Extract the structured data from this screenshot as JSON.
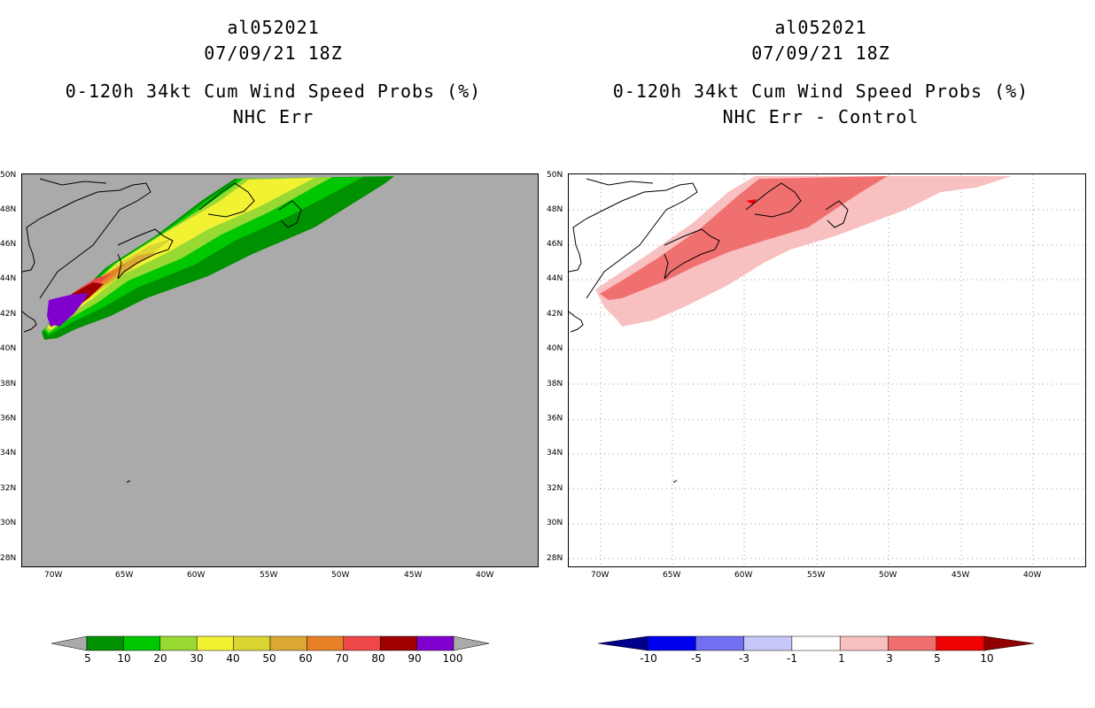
{
  "left": {
    "title1": "al052021",
    "title2": "07/09/21 18Z",
    "title3": "0-120h 34kt Cum Wind Speed Probs (%)",
    "title4": "NHC Err",
    "lat_labels": [
      "50N",
      "48N",
      "46N",
      "44N",
      "42N",
      "40N",
      "38N",
      "36N",
      "34N",
      "32N",
      "30N",
      "28N"
    ],
    "lon_labels": [
      "70W",
      "65W",
      "60W",
      "55W",
      "50W",
      "45W",
      "40W"
    ],
    "colorbar": {
      "labels": [
        "5",
        "10",
        "20",
        "30",
        "40",
        "50",
        "60",
        "70",
        "80",
        "90",
        "100"
      ],
      "colors": [
        "#009100",
        "#00c800",
        "#99d933",
        "#f2f233",
        "#dbd533",
        "#dba833",
        "#e88028",
        "#f04848",
        "#a00000",
        "#8000d0"
      ]
    }
  },
  "right": {
    "title1": "al052021",
    "title2": "07/09/21 18Z",
    "title3": "0-120h 34kt Cum Wind Speed Probs (%)",
    "title4": "NHC Err - Control",
    "lat_labels": [
      "50N",
      "48N",
      "46N",
      "44N",
      "42N",
      "40N",
      "38N",
      "36N",
      "34N",
      "32N",
      "30N",
      "28N"
    ],
    "lon_labels": [
      "70W",
      "65W",
      "60W",
      "55W",
      "50W",
      "45W",
      "40W"
    ],
    "colorbar": {
      "labels": [
        "-10",
        "-5",
        "-3",
        "-1",
        "1",
        "3",
        "5",
        "10"
      ],
      "colors": [
        "#00008c",
        "#0000f0",
        "#7070f0",
        "#c8c8f8",
        "#ffffff",
        "#f8c0c0",
        "#f07070",
        "#f00000",
        "#900000"
      ]
    }
  }
}
